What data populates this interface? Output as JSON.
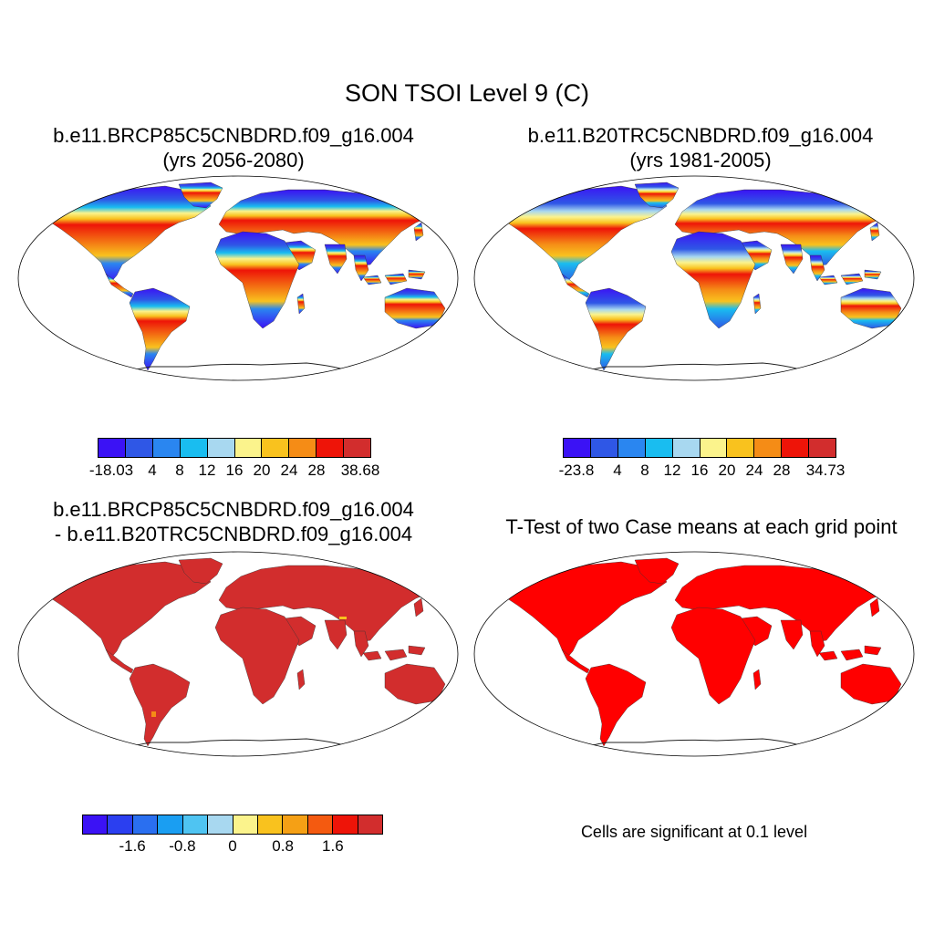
{
  "main_title": "SON TSOI Level 9 (C)",
  "panels": [
    {
      "title_line1": "b.e11.BRCP85C5CNBDRD.f09_g16.004",
      "title_line2": "(yrs 2056-2080)"
    },
    {
      "title_line1": "b.e11.B20TRC5CNBDRD.f09_g16.004",
      "title_line2": "(yrs 1981-2005)"
    },
    {
      "title_line1": "b.e11.BRCP85C5CNBDRD.f09_g16.004",
      "title_line2": "- b.e11.B20TRC5CNBDRD.f09_g16.004"
    },
    {
      "title_line1": "T-Test of two Case means at each grid point"
    }
  ],
  "colorbars": {
    "a": {
      "colors": [
        "#3b12f5",
        "#2f57e6",
        "#2a86f0",
        "#19bdf0",
        "#a8d8f0",
        "#fbf38c",
        "#f9c21e",
        "#f58c16",
        "#ee1408",
        "#d22d2d"
      ],
      "labels": [
        "-18.03",
        "4",
        "8",
        "12",
        "16",
        "20",
        "24",
        "28",
        "38.68"
      ]
    },
    "b": {
      "colors": [
        "#3b12f5",
        "#2f57e6",
        "#2a86f0",
        "#19bdf0",
        "#a8d8f0",
        "#fbf38c",
        "#f9c21e",
        "#f58c16",
        "#ee1408",
        "#d22d2d"
      ],
      "labels": [
        "-23.8",
        "4",
        "8",
        "12",
        "16",
        "20",
        "24",
        "28",
        "34.73"
      ]
    },
    "c": {
      "colors": [
        "#3b12f5",
        "#2b3ff0",
        "#2a6ff0",
        "#1a9ef2",
        "#4fc4f2",
        "#a8d8f0",
        "#fbf38c",
        "#f9c21e",
        "#f5a015",
        "#f45a10",
        "#ee1408",
        "#d22d2d"
      ],
      "labels": [
        "-1.6",
        "-0.8",
        "0",
        "0.8",
        "1.6"
      ]
    }
  },
  "colors": {
    "diff_fill": "#d22d2d",
    "ttest_fill": "#ff0000"
  },
  "significance_note": "Cells are significant at 0.1 level"
}
